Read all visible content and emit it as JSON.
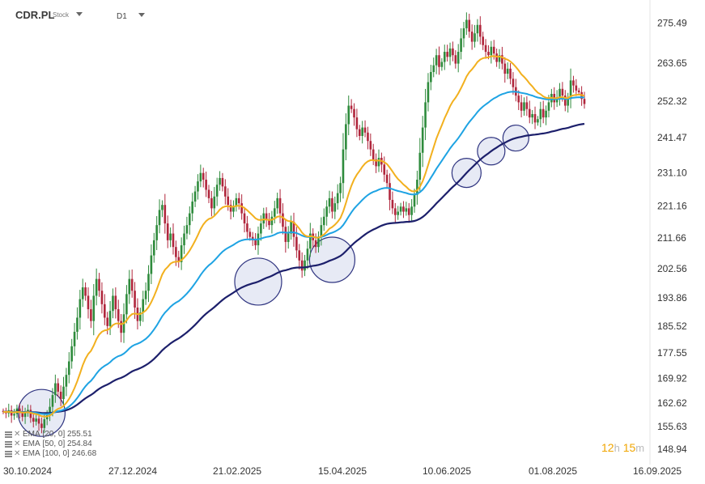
{
  "header": {
    "symbol": "CDR.PL",
    "symbol_type": "Stock",
    "timeframe": "D1"
  },
  "legend": [
    {
      "name": "EMA",
      "params": "[20,  0]",
      "value": "255.51"
    },
    {
      "name": "EMA",
      "params": "[50,  0]",
      "value": "254.84"
    },
    {
      "name": "EMA",
      "params": "[100,  0]",
      "value": "246.68"
    }
  ],
  "timer": {
    "hours": "12",
    "h_unit": "h",
    "minutes": "15",
    "m_unit": "m"
  },
  "colors": {
    "ema20": "#f2b01e",
    "ema50": "#1ea3e3",
    "ema100": "#1c1f6b",
    "up": "#2e8b3c",
    "down": "#b0263c",
    "circle_fill": "#dfe3f2",
    "circle_stroke": "#2f3480"
  },
  "chart_data": {
    "type": "candlestick",
    "ylim": [
      146.5,
      280
    ],
    "y_ticks": [
      "275.49",
      "263.65",
      "252.32",
      "241.47",
      "231.10",
      "221.16",
      "211.66",
      "202.56",
      "193.86",
      "185.52",
      "177.55",
      "169.92",
      "162.62",
      "155.63",
      "148.94"
    ],
    "x_ticks": [
      "30.10.2024",
      "27.12.2024",
      "21.02.2025",
      "15.04.2025",
      "10.06.2025",
      "01.08.2025",
      "16.09.2025"
    ],
    "close": [
      160.0,
      159.6,
      160.5,
      158.9,
      159.4,
      161.0,
      159.8,
      158.5,
      159.9,
      160.6,
      158.2,
      157.1,
      158.0,
      156.5,
      155.2,
      157.8,
      159.0,
      161.5,
      165.0,
      168.5,
      166.0,
      163.8,
      167.5,
      171.0,
      175.0,
      179.5,
      183.8,
      188.0,
      193.5,
      197.0,
      194.5,
      190.5,
      187.0,
      194.5,
      199.5,
      196.0,
      192.0,
      188.0,
      185.5,
      190.0,
      194.5,
      190.5,
      187.0,
      183.5,
      189.0,
      195.0,
      199.5,
      196.0,
      191.0,
      187.0,
      189.5,
      193.5,
      196.0,
      201.0,
      206.5,
      211.0,
      215.5,
      220.0,
      221.5,
      216.0,
      211.0,
      213.0,
      209.0,
      206.0,
      204.5,
      209.5,
      213.0,
      215.5,
      219.0,
      222.5,
      225.5,
      228.5,
      231.0,
      229.0,
      226.0,
      223.5,
      220.5,
      224.0,
      227.5,
      229.5,
      227.0,
      224.0,
      221.5,
      219.5,
      221.0,
      223.5,
      222.0,
      219.0,
      216.0,
      213.5,
      212.0,
      211.0,
      209.5,
      213.0,
      216.0,
      219.0,
      217.0,
      215.5,
      218.0,
      220.5,
      223.5,
      219.0,
      215.0,
      210.5,
      213.0,
      216.5,
      212.0,
      208.0,
      205.0,
      202.0,
      205.0,
      208.5,
      213.0,
      211.0,
      209.0,
      212.0,
      215.5,
      218.0,
      221.0,
      223.5,
      219.5,
      222.0,
      225.0,
      228.0,
      238.0,
      245.5,
      251.0,
      250.0,
      247.5,
      244.0,
      242.0,
      244.5,
      243.0,
      240.5,
      238.0,
      235.0,
      233.0,
      235.5,
      233.5,
      230.5,
      228.0,
      223.0,
      220.5,
      218.5,
      219.5,
      221.0,
      219.5,
      220.5,
      218.5,
      221.0,
      224.5,
      229.0,
      237.0,
      244.5,
      252.0,
      258.0,
      261.0,
      263.0,
      266.0,
      262.5,
      264.0,
      267.0,
      265.5,
      268.0,
      266.0,
      263.5,
      267.0,
      271.0,
      274.0,
      276.5,
      273.0,
      270.0,
      272.5,
      275.0,
      271.5,
      269.0,
      267.0,
      266.0,
      268.5,
      266.5,
      264.0,
      266.0,
      263.5,
      260.5,
      262.0,
      259.0,
      256.5,
      254.0,
      252.0,
      249.5,
      252.0,
      250.0,
      247.5,
      248.5,
      246.0,
      247.0,
      250.0,
      247.5,
      249.5,
      252.0,
      254.5,
      252.0,
      253.5,
      256.0,
      254.0,
      251.0,
      253.0,
      258.5,
      257.0,
      255.5,
      255.0,
      253.0,
      251.5
    ]
  }
}
